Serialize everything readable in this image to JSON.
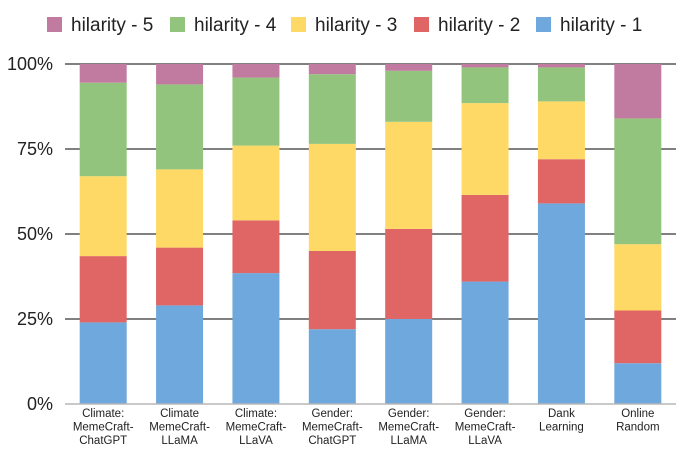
{
  "chart_data": {
    "type": "bar",
    "stacked": true,
    "normalized": true,
    "categories": [
      [
        "Climate:",
        "MemeCraft-",
        "ChatGPT"
      ],
      [
        "Climate",
        "MemeCraft-",
        "LLaMA"
      ],
      [
        "Climate:",
        "MemeCraft-",
        "LLaVA"
      ],
      [
        "Gender:",
        "MemeCraft-",
        "ChatGPT"
      ],
      [
        "Gender:",
        "MemeCraft-",
        "LLaMA"
      ],
      [
        "Gender:",
        "MemeCraft-",
        "LLaVA"
      ],
      [
        "Dank",
        "Learning"
      ],
      [
        "Online",
        "Random"
      ]
    ],
    "series": [
      {
        "name": "hilarity - 1",
        "color": "#6fa8dc",
        "values": [
          24,
          29,
          38.5,
          22,
          25,
          36,
          59,
          12
        ]
      },
      {
        "name": "hilarity - 2",
        "color": "#e06666",
        "values": [
          19.5,
          17,
          15.5,
          23,
          26.5,
          25.5,
          13,
          15.5
        ]
      },
      {
        "name": "hilarity - 3",
        "color": "#ffd966",
        "values": [
          23.5,
          23,
          22,
          31.5,
          31.5,
          27,
          17,
          19.5
        ]
      },
      {
        "name": "hilarity - 4",
        "color": "#93c47d",
        "values": [
          27.5,
          25,
          20,
          20.5,
          15,
          10.5,
          10,
          37
        ]
      },
      {
        "name": "hilarity - 5",
        "color": "#c27ba0",
        "values": [
          5.5,
          6,
          4,
          3,
          2,
          1,
          1,
          16
        ]
      }
    ],
    "legend_order": [
      "hilarity - 5",
      "hilarity - 4",
      "hilarity - 3",
      "hilarity - 2",
      "hilarity - 1"
    ],
    "legend_position": "top",
    "yticks": [
      "0%",
      "25%",
      "50%",
      "75%",
      "100%"
    ],
    "ylim": [
      0,
      100
    ],
    "grid": "horizontal",
    "gridline_color": "#000000",
    "axis_color": "#b7b7b7",
    "xlabel": "",
    "ylabel": ""
  }
}
